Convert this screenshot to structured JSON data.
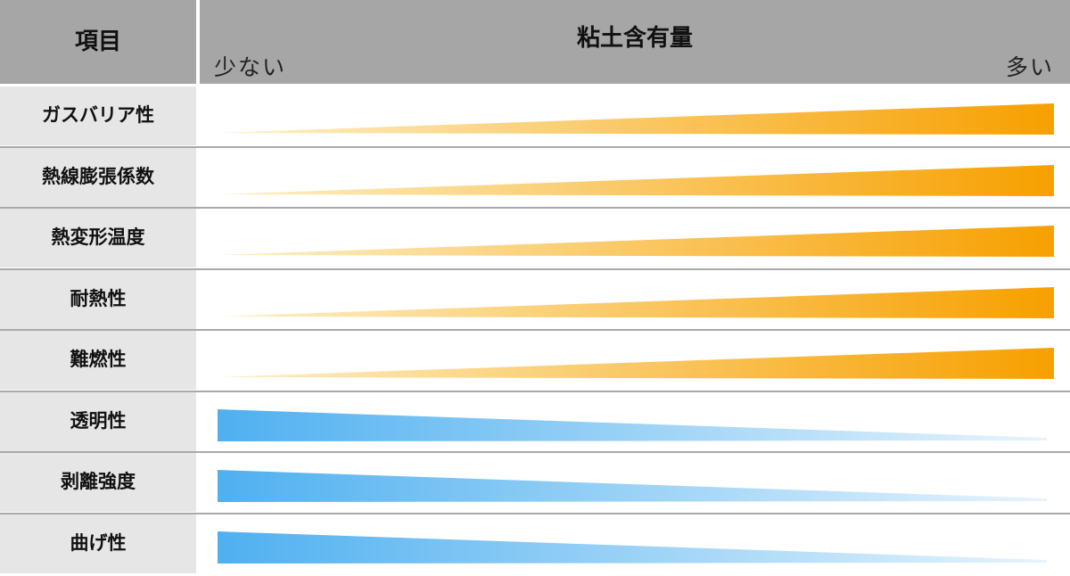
{
  "header": {
    "item_label": "項目",
    "title": "粘土含有量",
    "scale_low": "少ない",
    "scale_high": "多い"
  },
  "rows": [
    {
      "label": "ガスバリア性",
      "trend": "increase"
    },
    {
      "label": "熱線膨張係数",
      "trend": "increase"
    },
    {
      "label": "熱変形温度",
      "trend": "increase"
    },
    {
      "label": "耐熱性",
      "trend": "increase"
    },
    {
      "label": "難燃性",
      "trend": "increase"
    },
    {
      "label": "透明性",
      "trend": "decrease"
    },
    {
      "label": "剥離強度",
      "trend": "decrease"
    },
    {
      "label": "曲げ性",
      "trend": "decrease"
    }
  ],
  "colors": {
    "header_bg": "#a6a6a6",
    "label_bg": "#e6e6e6",
    "divider": "#a9a9a9",
    "increase_strong": "#f7a000",
    "increase_light": "#fdf0c8",
    "decrease_strong": "#4fb0f0",
    "decrease_light": "#e6f4fd"
  }
}
